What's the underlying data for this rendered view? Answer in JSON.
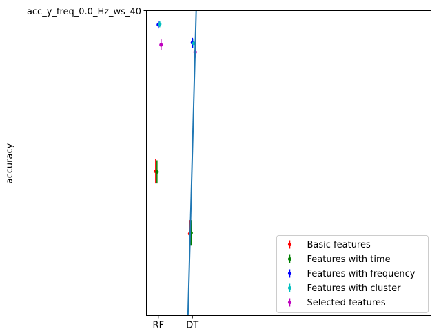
{
  "chart_data": {
    "type": "scatter",
    "ylabel": "accuracy",
    "y_tick_label": "acc_y_freq_0.0_Hz_ws_40",
    "categories": [
      "RF",
      "DT"
    ],
    "ylim": [
      0.0,
      1.0
    ],
    "grid": false,
    "legend_position": "lower-right",
    "series": [
      {
        "name": "Basic features",
        "color": "#ff0000",
        "points": [
          {
            "category": "RF",
            "offset": -0.08,
            "y": 0.473,
            "err": 0.04
          },
          {
            "category": "DT",
            "offset": -0.08,
            "y": 0.268,
            "err": 0.045
          }
        ]
      },
      {
        "name": "Features with time",
        "color": "#008000",
        "points": [
          {
            "category": "RF",
            "offset": -0.04,
            "y": 0.471,
            "err": 0.038
          },
          {
            "category": "DT",
            "offset": -0.04,
            "y": 0.271,
            "err": 0.042
          }
        ]
      },
      {
        "name": "Features with frequency",
        "color": "#0000ff",
        "points": [
          {
            "category": "RF",
            "offset": 0.0,
            "y": 0.954,
            "err": 0.012
          },
          {
            "category": "DT",
            "offset": 0.0,
            "y": 0.895,
            "err": 0.016
          }
        ]
      },
      {
        "name": "Features with cluster",
        "color": "#00bfbf",
        "points": [
          {
            "category": "RF",
            "offset": 0.04,
            "y": 0.956,
            "err": 0.01
          },
          {
            "category": "DT",
            "offset": 0.04,
            "y": 0.893,
            "err": 0.016
          }
        ]
      },
      {
        "name": "Selected features",
        "color": "#bf00bf",
        "points": [
          {
            "category": "RF",
            "offset": 0.08,
            "y": 0.888,
            "err": 0.018
          },
          {
            "category": "DT",
            "offset": 0.08,
            "y": 0.864,
            "err": 0.018
          }
        ]
      }
    ],
    "reference_line": {
      "color": "#1f77b4",
      "points": [
        {
          "x": 0.87,
          "y": 0.0
        },
        {
          "x": 1.11,
          "y": 1.0
        }
      ]
    }
  }
}
